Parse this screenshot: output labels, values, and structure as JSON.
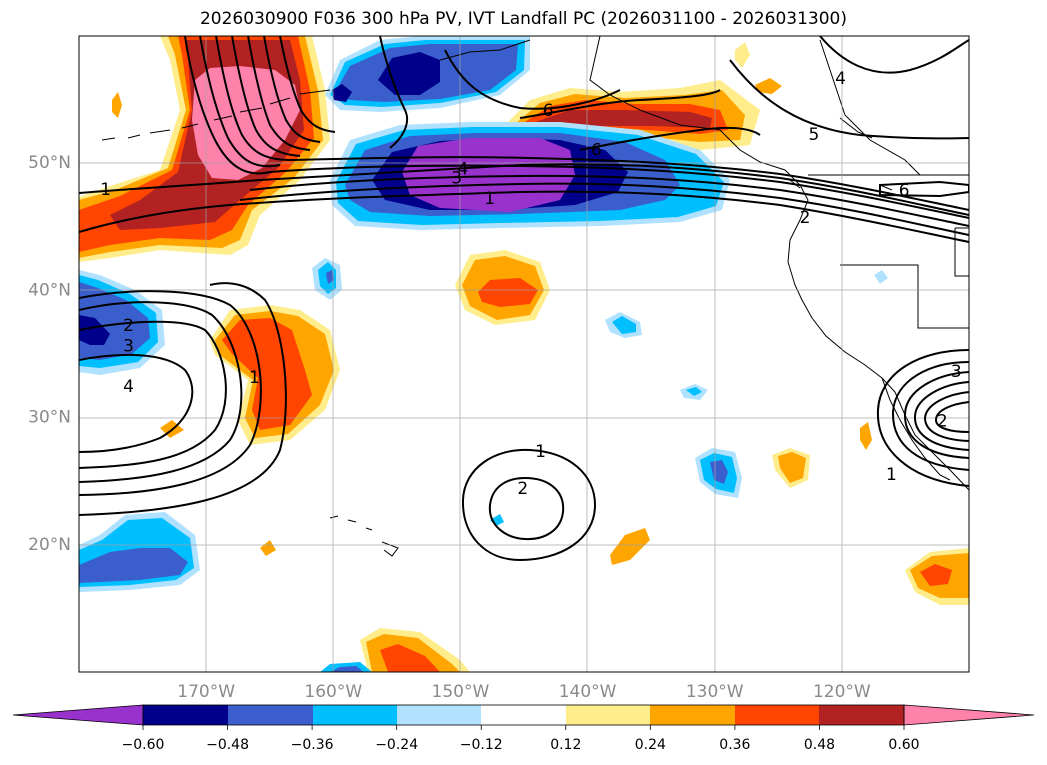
{
  "title": "2026030900 F036 300 hPa PV, IVT Landfall PC (2026031100 - 2026031300)",
  "map": {
    "lon_range": [
      -180,
      -110
    ],
    "lat_range": [
      10,
      60
    ],
    "lon_ticks": [
      {
        "value": -170,
        "label": "170°W"
      },
      {
        "value": -160,
        "label": "160°W"
      },
      {
        "value": -150,
        "label": "150°W"
      },
      {
        "value": -140,
        "label": "140°W"
      },
      {
        "value": -130,
        "label": "130°W"
      },
      {
        "value": -120,
        "label": "120°W"
      }
    ],
    "lat_ticks": [
      {
        "value": 20,
        "label": "20°N"
      },
      {
        "value": 30,
        "label": "30°N"
      },
      {
        "value": 40,
        "label": "40°N"
      },
      {
        "value": 50,
        "label": "50°N"
      }
    ],
    "gridlines": true
  },
  "colorbar": {
    "ticks": [
      "−0.60",
      "−0.48",
      "−0.36",
      "−0.24",
      "−0.12",
      "0.12",
      "0.24",
      "0.36",
      "0.48",
      "0.60"
    ],
    "colors": {
      "neg_extend": "#9932cc",
      "neg_060": "#00008b",
      "neg_048": "#3a5fcd",
      "neg_036": "#00bfff",
      "neg_024": "#b0e2ff",
      "neutral": "#ffffff",
      "pos_012": "#ffec8b",
      "pos_024": "#ffa500",
      "pos_036": "#ff4500",
      "pos_048": "#b22222",
      "pos_extend": "#ff82ab"
    }
  },
  "contour_labels": [
    {
      "text": "1",
      "lon": -177.9,
      "lat": 47.9
    },
    {
      "text": "1",
      "lon": -147.7,
      "lat": 47.2
    },
    {
      "text": "1",
      "lon": -166.2,
      "lat": 33.1
    },
    {
      "text": "1",
      "lon": -143.7,
      "lat": 27.3
    },
    {
      "text": "1",
      "lon": -116.1,
      "lat": 25.5
    },
    {
      "text": "2",
      "lon": -176.1,
      "lat": 37.2
    },
    {
      "text": "2",
      "lon": -145.1,
      "lat": 24.4
    },
    {
      "text": "2",
      "lon": -122.9,
      "lat": 45.7
    },
    {
      "text": "2",
      "lon": -112.1,
      "lat": 29.7
    },
    {
      "text": "3",
      "lon": -176.1,
      "lat": 35.6
    },
    {
      "text": "3",
      "lon": -150.3,
      "lat": 48.8
    },
    {
      "text": "3",
      "lon": -111.0,
      "lat": 33.6
    },
    {
      "text": "4",
      "lon": -176.1,
      "lat": 32.4
    },
    {
      "text": "4",
      "lon": -149.8,
      "lat": 49.5
    },
    {
      "text": "4",
      "lon": -120.1,
      "lat": 56.6
    },
    {
      "text": "5",
      "lon": -122.2,
      "lat": 52.2
    },
    {
      "text": "6",
      "lon": -143.1,
      "lat": 54.1
    },
    {
      "text": "6",
      "lon": -139.3,
      "lat": 51.0
    },
    {
      "text": "6",
      "lon": -115.1,
      "lat": 47.8
    }
  ]
}
